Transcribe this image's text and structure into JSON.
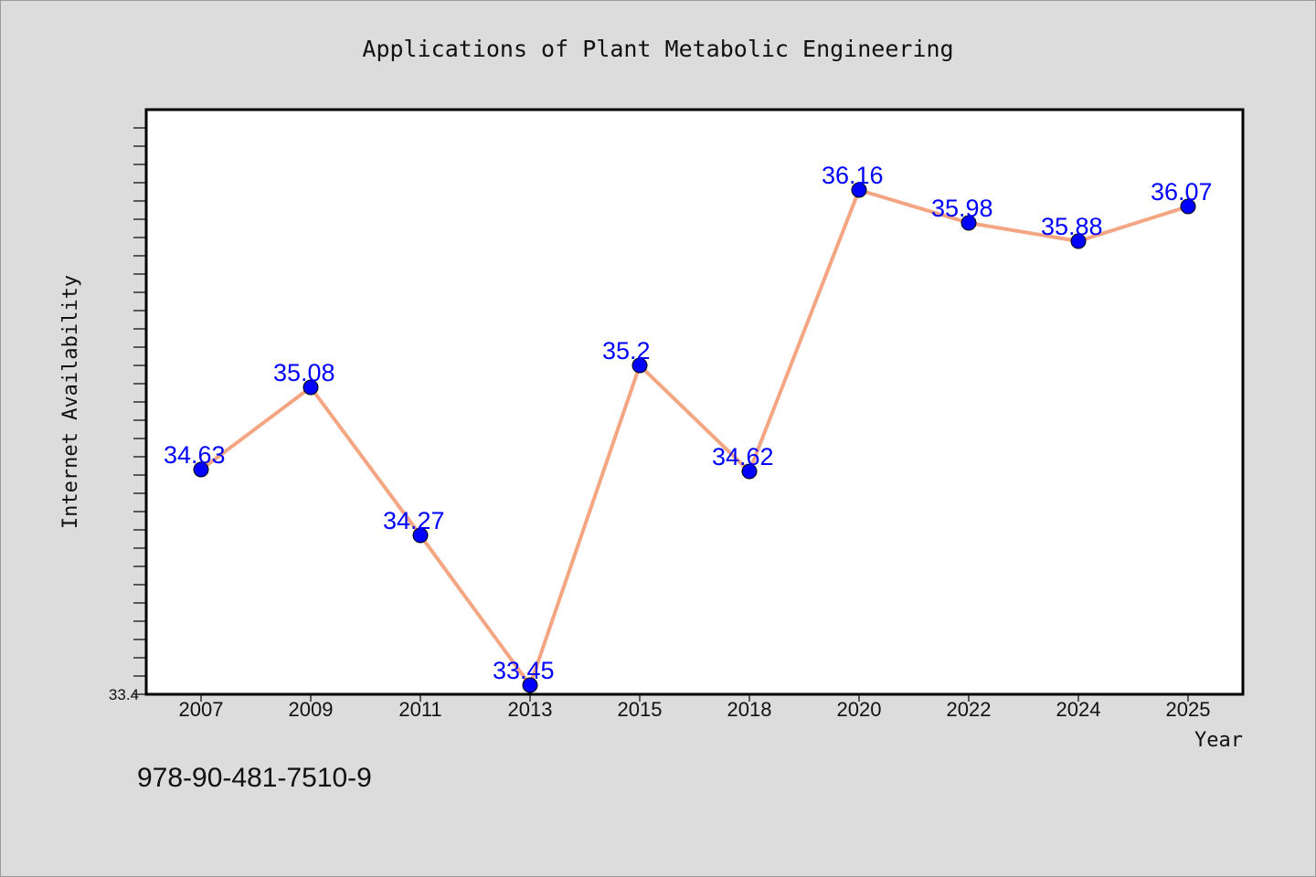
{
  "chart_data": {
    "type": "line",
    "title": "Applications of Plant Metabolic Engineering",
    "xlabel": "Year",
    "ylabel": "Internet Availability",
    "categories": [
      "2007",
      "2009",
      "2011",
      "2013",
      "2015",
      "2018",
      "2020",
      "2022",
      "2024",
      "2025"
    ],
    "series": [
      {
        "values": [
          34.63,
          35.08,
          34.27,
          33.45,
          35.2,
          34.62,
          36.16,
          35.98,
          35.88,
          36.07
        ],
        "data_labels": [
          "34.63",
          "35.08",
          "34.27",
          "33.45",
          "35.2",
          "34.62",
          "36.16",
          "35.98",
          "35.88",
          "36.07"
        ]
      }
    ],
    "ylim": [
      33.4,
      36.6
    ],
    "ytick_labels": [
      "33.4"
    ],
    "grid": false,
    "legend": "none",
    "colors": {
      "line": "#f4a582",
      "marker": "#0000ff",
      "label": "#0000ff"
    }
  },
  "footer_text": "978-90-481-7510-9"
}
